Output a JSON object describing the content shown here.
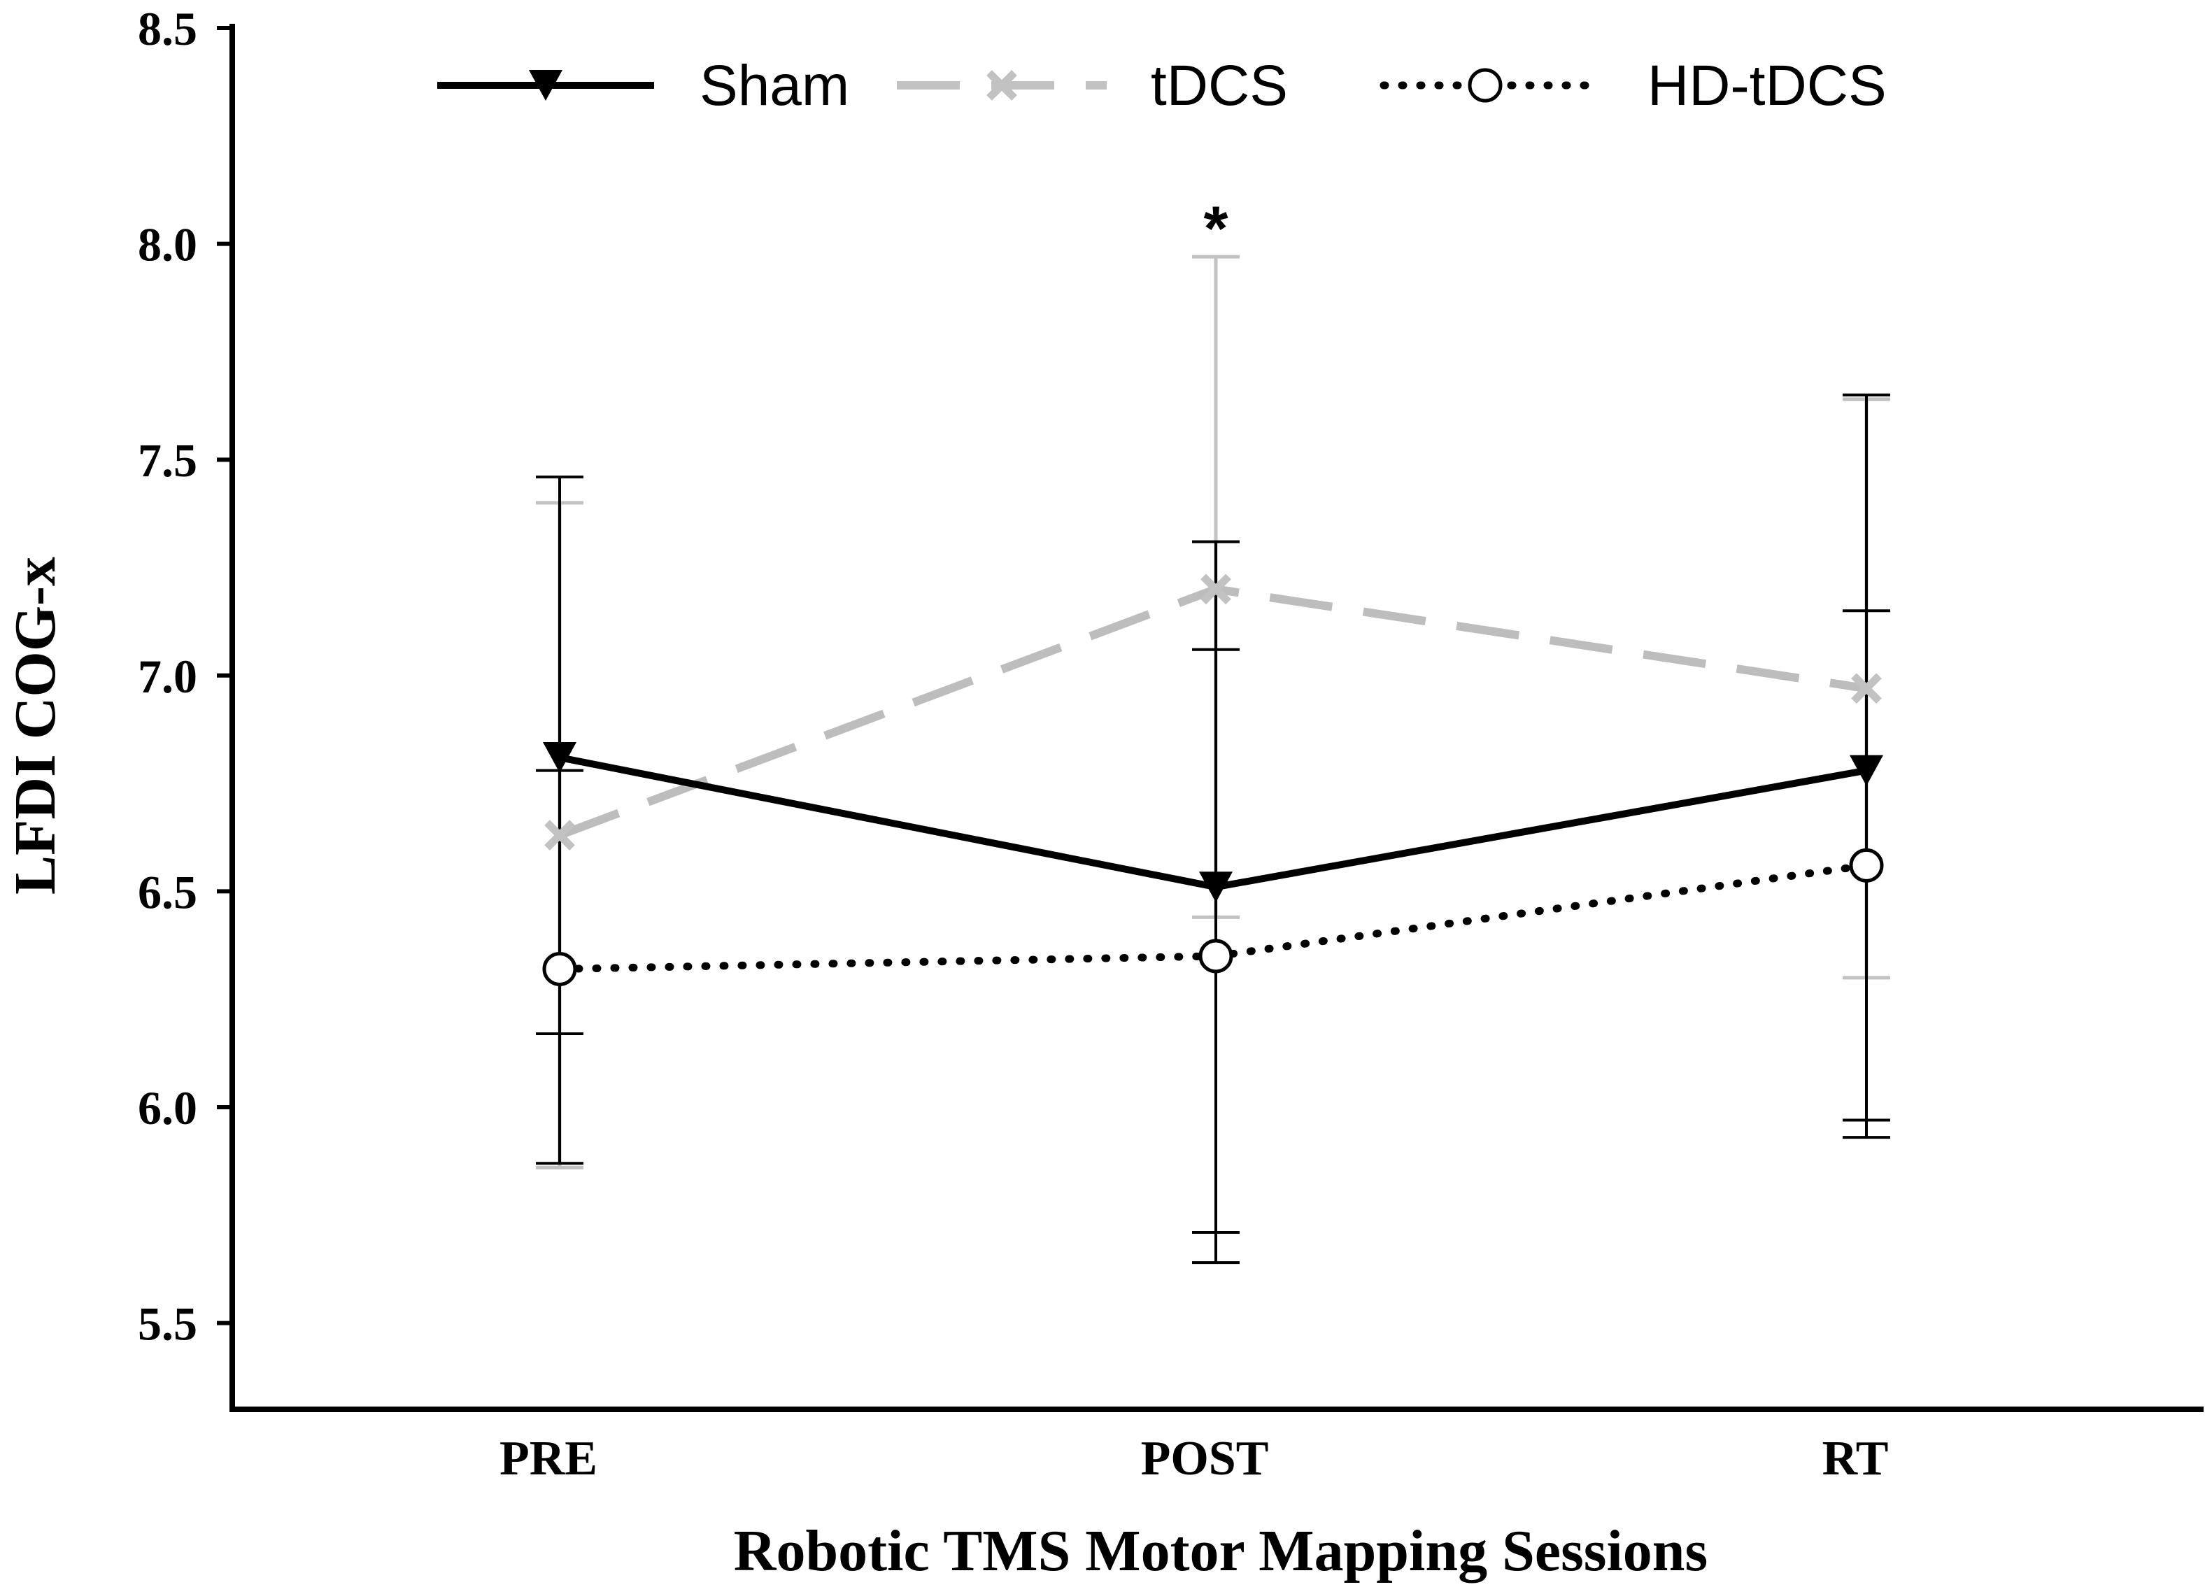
{
  "chart_data": {
    "type": "line",
    "title": "",
    "xlabel": "Robotic TMS Motor Mapping Sessions",
    "ylabel": "LFDI COG-x",
    "categories": [
      "PRE",
      "POST",
      "RT"
    ],
    "ylim": [
      5.3,
      8.5
    ],
    "yticks": [
      "5.5",
      "6.0",
      "6.5",
      "7.0",
      "7.5",
      "8.0",
      "8.5"
    ],
    "grid": false,
    "legend_position": "top",
    "series": [
      {
        "name": "Sham",
        "color": "#000000",
        "style": "solid",
        "marker": "triangle-down",
        "values": [
          6.81,
          6.51,
          6.78
        ],
        "error_upper": [
          7.46,
          7.31,
          7.65
        ],
        "error_lower": [
          6.17,
          5.71,
          5.93
        ]
      },
      {
        "name": "tDCS",
        "color": "#bdbdbd",
        "style": "dashed",
        "marker": "x",
        "values": [
          6.63,
          7.2,
          6.97
        ],
        "error_upper": [
          7.4,
          7.97,
          7.64
        ],
        "error_lower": [
          5.86,
          6.44,
          6.3
        ]
      },
      {
        "name": "HD-tDCS",
        "color": "#000000",
        "style": "dotted",
        "marker": "open-circle",
        "values": [
          6.32,
          6.35,
          6.56
        ],
        "error_upper": [
          6.78,
          7.06,
          7.15
        ],
        "error_lower": [
          5.87,
          5.64,
          5.97
        ]
      }
    ],
    "annotations": [
      {
        "text": "*",
        "category": "POST",
        "y": 8.05
      }
    ]
  }
}
